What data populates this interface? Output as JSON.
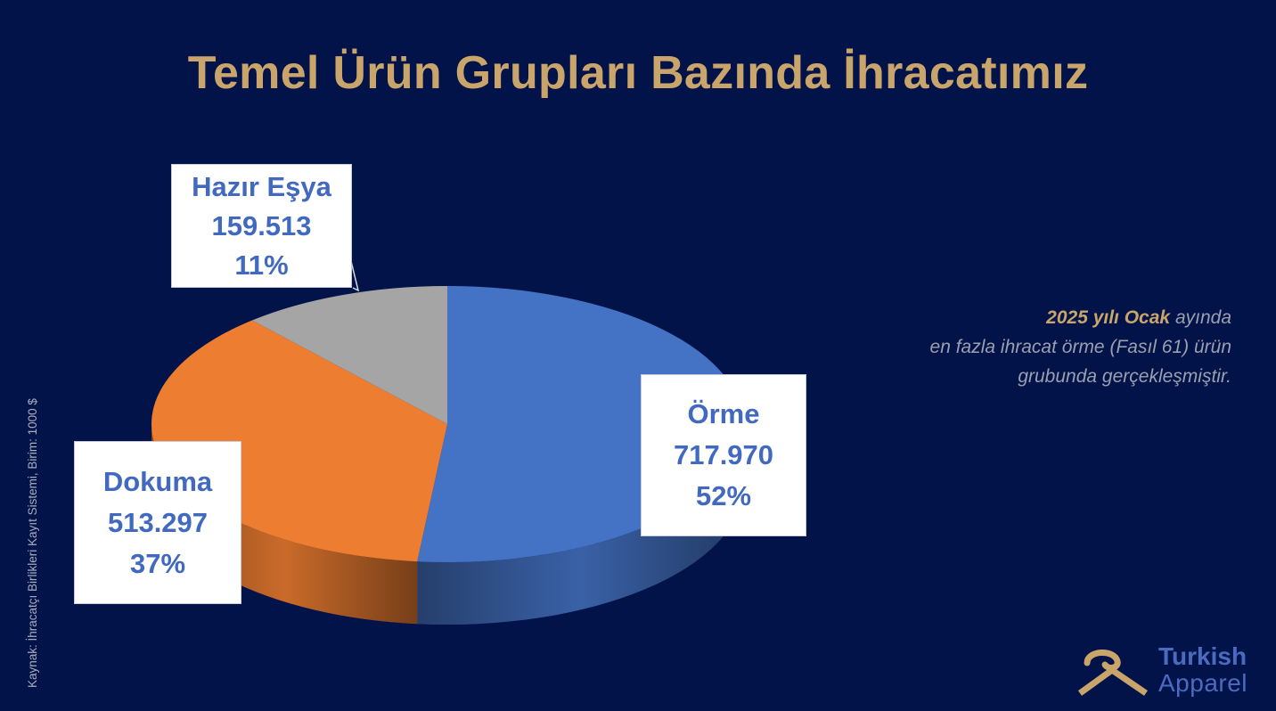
{
  "title": "Temel Ürün Grupları Bazında İhracatımız",
  "chart_data": {
    "type": "pie",
    "title": "Temel Ürün Grupları Bazında İhracatımız",
    "unit": "Birim: 1000 $",
    "slices": [
      {
        "name": "Örme",
        "value": 717970,
        "value_label": "717.970",
        "percent_label": "52%",
        "color": "#4472c4"
      },
      {
        "name": "Dokuma",
        "value": 513297,
        "value_label": "513.297",
        "percent_label": "37%",
        "color": "#ed7d31"
      },
      {
        "name": "Hazır Eşya",
        "value": 159513,
        "value_label": "159.513",
        "percent_label": "11%",
        "color": "#a5a5a5"
      }
    ]
  },
  "note": {
    "highlight": "2025 yılı Ocak",
    "line1_rest": " ayında",
    "line2": "en fazla ihracat örme (Fasıl 61) ürün",
    "line3": "grubunda gerçekleşmiştir."
  },
  "source": "Kaynak: İhracatçı Birlikleri Kayıt Sistemi, Birim: 1000 $",
  "logo": {
    "line1": "Turkish",
    "line2": "Apparel",
    "color": "#c9a56b"
  }
}
